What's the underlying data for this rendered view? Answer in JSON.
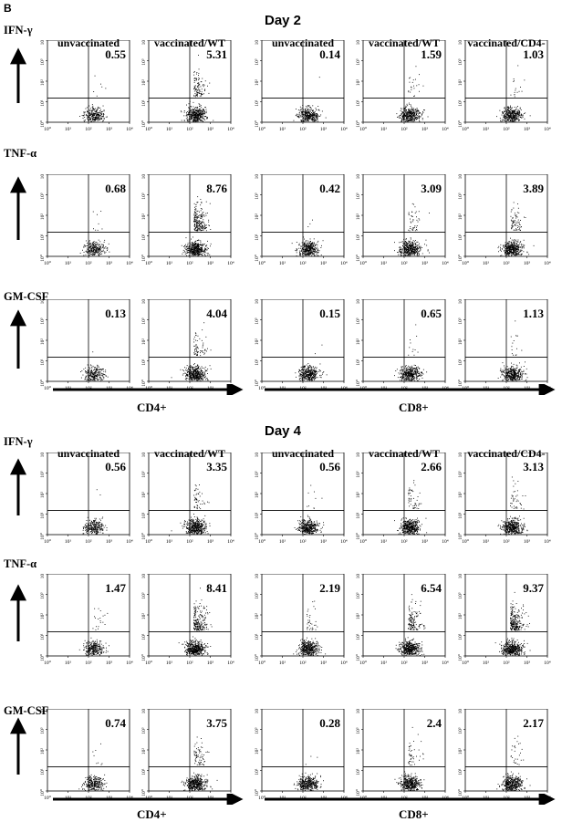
{
  "panel_label": "B",
  "chart_data": {
    "type": "scatter",
    "plot_kind": "flow-cytometry quadrant dot plots",
    "x_axis_scale": "log",
    "y_axis_scale": "log",
    "xlim": [
      1,
      10000
    ],
    "ylim": [
      1,
      10000
    ],
    "tick_labels": [
      "10⁰",
      "10¹",
      "10²",
      "10³",
      "10⁴"
    ],
    "quadrant_gate": {
      "x": 100,
      "y": 15
    },
    "column_headers": [
      "unvaccinated",
      "vaccinated/WT",
      "unvaccinated",
      "vaccinated/WT",
      "vaccinated/CD4-"
    ],
    "x_group_labels": [
      "CD4+",
      "CD8+"
    ],
    "row_labels": [
      "IFN-γ",
      "TNF-α",
      "GM-CSF"
    ],
    "days": [
      {
        "title": "Day 2",
        "rows": [
          {
            "label": "IFN-γ",
            "values": [
              "0.55",
              "5.31",
              "0.14",
              "1.59",
              "1.03"
            ]
          },
          {
            "label": "TNF-α",
            "values": [
              "0.68",
              "8.76",
              "0.42",
              "3.09",
              "3.89"
            ]
          },
          {
            "label": "GM-CSF",
            "values": [
              "0.13",
              "4.04",
              "0.15",
              "0.65",
              "1.13"
            ]
          }
        ]
      },
      {
        "title": "Day 4",
        "rows": [
          {
            "label": "IFN-γ",
            "values": [
              "0.56",
              "3.35",
              "0.56",
              "2.66",
              "3.13"
            ]
          },
          {
            "label": "TNF-α",
            "values": [
              "1.47",
              "8.41",
              "2.19",
              "6.54",
              "9.37"
            ]
          },
          {
            "label": "GM-CSF",
            "values": [
              "0.74",
              "3.75",
              "0.28",
              "2.4",
              "2.17"
            ]
          }
        ]
      }
    ]
  }
}
